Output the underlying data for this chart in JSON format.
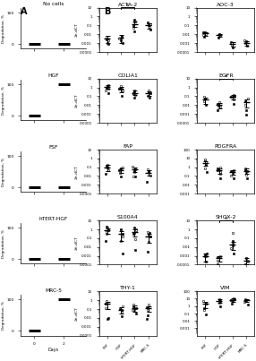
{
  "panel_A_conditions": [
    "No cells",
    "HGF",
    "FSF",
    "hTERT-HGF",
    "MRC-5"
  ],
  "degradation_data": {
    "No cells": {
      "day0": 0,
      "day2": 0
    },
    "HGF": {
      "day0": 0,
      "day2": 100
    },
    "FSF": {
      "day0": 0,
      "day2": 0
    },
    "hTERT-HGF": {
      "day0": 0,
      "day2": 0
    },
    "MRC-5": {
      "day0": 0,
      "day2": 100
    }
  },
  "cell_types": [
    "FSF",
    "HGF",
    "hTERT-HGF",
    "MRC-5"
  ],
  "gene_pairs": [
    [
      "ACTA-2",
      "AOC-3"
    ],
    [
      "COLIA1",
      "EGFR"
    ],
    [
      "FAP",
      "PDGFRA"
    ],
    [
      "S100A4",
      "SHOX-2"
    ],
    [
      "THY-1",
      "VIM"
    ]
  ],
  "gene_data": {
    "ACTA-2": {
      "ylim": [
        0.0001,
        10
      ],
      "yticks": [
        0.0001,
        0.001,
        0.01,
        0.1,
        1,
        10
      ],
      "significance": [
        [
          1,
          2
        ]
      ],
      "FSF": {
        "mean": 0.003,
        "sem_lo": 0.002,
        "sem_hi": 0.003,
        "points": [
          0.001,
          0.002,
          0.0008,
          0.005,
          0.0025
        ]
      },
      "HGF": {
        "mean": 0.004,
        "sem_lo": 0.003,
        "sem_hi": 0.004,
        "points": [
          0.001,
          0.003,
          0.006,
          0.004,
          0.002
        ]
      },
      "hTERT-HGF": {
        "mean": 0.15,
        "sem_lo": 0.08,
        "sem_hi": 0.12,
        "points": [
          0.02,
          0.06,
          0.08,
          0.25,
          0.4,
          0.3
        ]
      },
      "MRC-5": {
        "mean": 0.1,
        "sem_lo": 0.06,
        "sem_hi": 0.08,
        "points": [
          0.03,
          0.07,
          0.12,
          0.15,
          0.2
        ]
      }
    },
    "AOC-3": {
      "ylim": [
        0.0001,
        10
      ],
      "yticks": [
        0.0001,
        0.001,
        0.01,
        0.1,
        1,
        10
      ],
      "significance": [],
      "FSF": {
        "mean": 0.012,
        "sem_lo": 0.005,
        "sem_hi": 0.005,
        "points": [
          0.005,
          0.01,
          0.015,
          0.008,
          0.018
        ]
      },
      "HGF": {
        "mean": 0.008,
        "sem_lo": 0.003,
        "sem_hi": 0.003,
        "points": [
          0.004,
          0.007,
          0.01,
          0.009
        ]
      },
      "hTERT-HGF": {
        "mean": 0.0008,
        "sem_lo": 0.0004,
        "sem_hi": 0.0004,
        "points": [
          0.0003,
          0.0006,
          0.0012,
          0.001
        ]
      },
      "MRC-5": {
        "mean": 0.001,
        "sem_lo": 0.0005,
        "sem_hi": 0.0005,
        "points": [
          0.0005,
          0.001,
          0.0015,
          0.002
        ]
      }
    },
    "COLIA1": {
      "ylim": [
        0.0001,
        10
      ],
      "yticks": [
        0.0001,
        0.001,
        0.01,
        0.1,
        1,
        10
      ],
      "significance": [],
      "FSF": {
        "mean": 1.2,
        "sem_lo": 0.5,
        "sem_hi": 0.6,
        "points": [
          0.2,
          0.5,
          1.0,
          2.0,
          1.5,
          0.8
        ]
      },
      "HGF": {
        "mean": 0.7,
        "sem_lo": 0.4,
        "sem_hi": 0.5,
        "points": [
          0.1,
          0.4,
          0.8,
          1.5,
          1.0,
          0.5
        ]
      },
      "hTERT-HGF": {
        "mean": 0.25,
        "sem_lo": 0.12,
        "sem_hi": 0.15,
        "points": [
          0.07,
          0.15,
          0.25,
          0.5,
          0.35,
          0.2
        ]
      },
      "MRC-5": {
        "mean": 0.2,
        "sem_lo": 0.1,
        "sem_hi": 0.12,
        "points": [
          0.07,
          0.1,
          0.2,
          0.4,
          0.3,
          0.1
        ]
      }
    },
    "EGFR": {
      "ylim": [
        0.0001,
        10
      ],
      "yticks": [
        0.0001,
        0.001,
        0.01,
        0.1,
        1,
        10
      ],
      "significance": [
        [
          1,
          2
        ]
      ],
      "FSF": {
        "mean": 0.04,
        "sem_lo": 0.025,
        "sem_hi": 0.03,
        "points": [
          0.01,
          0.025,
          0.05,
          0.08,
          0.06
        ]
      },
      "HGF": {
        "mean": 0.01,
        "sem_lo": 0.006,
        "sem_hi": 0.008,
        "points": [
          0.003,
          0.007,
          0.015,
          0.02,
          0.009
        ]
      },
      "hTERT-HGF": {
        "mean": 0.08,
        "sem_lo": 0.04,
        "sem_hi": 0.05,
        "points": [
          0.015,
          0.04,
          0.08,
          0.15,
          0.12,
          0.06
        ]
      },
      "MRC-5": {
        "mean": 0.02,
        "sem_lo": 0.015,
        "sem_hi": 0.02,
        "points": [
          0.003,
          0.01,
          0.025,
          0.05,
          0.0008
        ]
      }
    },
    "FAP": {
      "ylim": [
        0.0001,
        10
      ],
      "yticks": [
        0.0001,
        0.001,
        0.01,
        0.1,
        1,
        10
      ],
      "significance": [],
      "FSF": {
        "mean": 0.1,
        "sem_lo": 0.06,
        "sem_hi": 0.07,
        "points": [
          0.02,
          0.05,
          0.1,
          0.2,
          0.15
        ]
      },
      "HGF": {
        "mean": 0.05,
        "sem_lo": 0.025,
        "sem_hi": 0.03,
        "points": [
          0.008,
          0.025,
          0.05,
          0.1,
          0.07
        ]
      },
      "hTERT-HGF": {
        "mean": 0.06,
        "sem_lo": 0.03,
        "sem_hi": 0.04,
        "points": [
          0.008,
          0.03,
          0.06,
          0.12,
          0.05,
          0.008
        ]
      },
      "MRC-5": {
        "mean": 0.025,
        "sem_lo": 0.015,
        "sem_hi": 0.02,
        "points": [
          0.002,
          0.012,
          0.03,
          0.06,
          0.04
        ]
      }
    },
    "PDGFRA": {
      "ylim": [
        0.001,
        100
      ],
      "yticks": [
        0.001,
        0.01,
        0.1,
        1,
        10,
        100
      ],
      "significance": [],
      "FSF": {
        "mean": 3.0,
        "sem_lo": 1.5,
        "sem_hi": 2.0,
        "points": [
          0.3,
          0.8,
          2.0,
          4.0,
          6.0,
          8.0
        ]
      },
      "HGF": {
        "mean": 0.5,
        "sem_lo": 0.3,
        "sem_hi": 0.3,
        "points": [
          0.05,
          0.2,
          0.5,
          1.0,
          0.8,
          0.3
        ]
      },
      "hTERT-HGF": {
        "mean": 0.3,
        "sem_lo": 0.15,
        "sem_hi": 0.2,
        "points": [
          0.05,
          0.12,
          0.3,
          0.5,
          0.4,
          0.2
        ]
      },
      "MRC-5": {
        "mean": 0.4,
        "sem_lo": 0.2,
        "sem_hi": 0.25,
        "points": [
          0.05,
          0.15,
          0.4,
          0.7,
          0.5,
          0.3
        ]
      }
    },
    "S100A4": {
      "ylim": [
        0.0001,
        10
      ],
      "yticks": [
        0.0001,
        0.001,
        0.01,
        0.1,
        1,
        10
      ],
      "significance": [],
      "FSF": {
        "mean": 0.8,
        "sem_lo": 0.5,
        "sem_hi": 0.5,
        "points": [
          0.05,
          0.3,
          0.8,
          1.5,
          2.0,
          0.5
        ]
      },
      "HGF": {
        "mean": 0.3,
        "sem_lo": 0.25,
        "sem_hi": 0.3,
        "points": [
          0.002,
          0.05,
          0.3,
          0.7,
          1.0,
          0.15
        ]
      },
      "hTERT-HGF": {
        "mean": 0.5,
        "sem_lo": 0.35,
        "sem_hi": 0.4,
        "points": [
          0.005,
          0.08,
          0.4,
          1.0,
          1.5,
          0.8,
          0.3
        ]
      },
      "MRC-5": {
        "mean": 0.15,
        "sem_lo": 0.12,
        "sem_hi": 0.15,
        "points": [
          0.003,
          0.04,
          0.15,
          0.5,
          0.4,
          0.2
        ]
      }
    },
    "SHOX-2": {
      "ylim": [
        0.0001,
        10
      ],
      "yticks": [
        0.0001,
        0.001,
        0.01,
        0.1,
        1,
        10
      ],
      "significance": [
        [
          1,
          2
        ]
      ],
      "FSF": {
        "mean": 0.001,
        "sem_lo": 0.0008,
        "sem_hi": 0.001,
        "points": [
          0.0002,
          0.0008,
          0.002,
          0.001,
          0.0015
        ]
      },
      "HGF": {
        "mean": 0.0005,
        "sem_lo": 0.0003,
        "sem_hi": 0.0004,
        "points": [
          0.0001,
          0.0003,
          0.0007,
          0.001
        ]
      },
      "hTERT-HGF": {
        "mean": 0.02,
        "sem_lo": 0.015,
        "sem_hi": 0.015,
        "points": [
          0.002,
          0.008,
          0.015,
          0.03,
          0.05,
          0.4
        ]
      },
      "MRC-5": {
        "mean": 0.0003,
        "sem_lo": 0.0002,
        "sem_hi": 0.0002,
        "points": [
          0.0001,
          0.0002,
          0.0005,
          0.0003
        ]
      }
    },
    "THY-1": {
      "ylim": [
        0.0001,
        10
      ],
      "yticks": [
        0.0001,
        0.001,
        0.01,
        0.1,
        1,
        10
      ],
      "significance": [],
      "FSF": {
        "mean": 0.35,
        "sem_lo": 0.25,
        "sem_hi": 0.3,
        "points": [
          0.008,
          0.12,
          0.35,
          0.7,
          0.01
        ]
      },
      "HGF": {
        "mean": 0.08,
        "sem_lo": 0.05,
        "sem_hi": 0.06,
        "points": [
          0.015,
          0.05,
          0.1,
          0.2,
          0.07
        ]
      },
      "hTERT-HGF": {
        "mean": 0.12,
        "sem_lo": 0.07,
        "sem_hi": 0.1,
        "points": [
          0.03,
          0.07,
          0.12,
          0.3,
          0.2,
          0.07
        ]
      },
      "MRC-5": {
        "mean": 0.12,
        "sem_lo": 0.07,
        "sem_hi": 0.08,
        "points": [
          0.02,
          0.07,
          0.15,
          0.3,
          0.008
        ]
      }
    },
    "VIM": {
      "ylim": [
        0.0001,
        100
      ],
      "yticks": [
        0.001,
        0.01,
        0.1,
        1,
        10,
        100
      ],
      "significance": [],
      "FSF": {
        "mean": 2.0,
        "sem_lo": 1.5,
        "sem_hi": 2.0,
        "points": [
          0.08,
          0.3,
          2.0,
          5.0,
          0.5
        ]
      },
      "HGF": {
        "mean": 5.0,
        "sem_lo": 2.0,
        "sem_hi": 3.0,
        "points": [
          1.0,
          3.0,
          5.0,
          8.0,
          6.0
        ]
      },
      "hTERT-HGF": {
        "mean": 7.0,
        "sem_lo": 3.0,
        "sem_hi": 4.0,
        "points": [
          2.0,
          5.0,
          7.0,
          12.0,
          8.0
        ]
      },
      "MRC-5": {
        "mean": 6.0,
        "sem_lo": 2.5,
        "sem_hi": 3.0,
        "points": [
          1.5,
          4.0,
          6.0,
          9.0,
          7.0
        ]
      }
    }
  }
}
